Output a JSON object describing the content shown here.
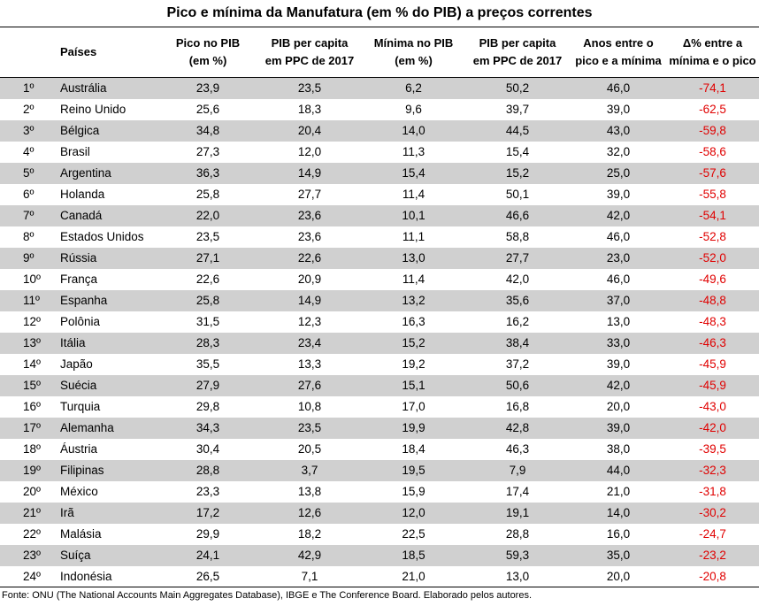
{
  "title": "Pico e mínima da Manufatura (em % do PIB) a preços correntes",
  "headers": {
    "pais": "Países",
    "pico": [
      "Pico no PIB",
      "(em %)"
    ],
    "pib_pico": [
      "PIB per capita",
      "em PPC de 2017"
    ],
    "minima": [
      "Mínima no PIB",
      "(em %)"
    ],
    "pib_min": [
      "PIB per capita",
      "em PPC de 2017"
    ],
    "anos": [
      "Anos entre o",
      "pico e a mínima"
    ],
    "delta": [
      "Δ% entre a",
      "mínima e o pico"
    ]
  },
  "rows": [
    [
      "1º",
      "Austrália",
      "23,9",
      "23,5",
      "6,2",
      "50,2",
      "46,0",
      "-74,1"
    ],
    [
      "2º",
      "Reino Unido",
      "25,6",
      "18,3",
      "9,6",
      "39,7",
      "39,0",
      "-62,5"
    ],
    [
      "3º",
      "Bélgica",
      "34,8",
      "20,4",
      "14,0",
      "44,5",
      "43,0",
      "-59,8"
    ],
    [
      "4º",
      "Brasil",
      "27,3",
      "12,0",
      "11,3",
      "15,4",
      "32,0",
      "-58,6"
    ],
    [
      "5º",
      "Argentina",
      "36,3",
      "14,9",
      "15,4",
      "15,2",
      "25,0",
      "-57,6"
    ],
    [
      "6º",
      "Holanda",
      "25,8",
      "27,7",
      "11,4",
      "50,1",
      "39,0",
      "-55,8"
    ],
    [
      "7º",
      "Canadá",
      "22,0",
      "23,6",
      "10,1",
      "46,6",
      "42,0",
      "-54,1"
    ],
    [
      "8º",
      "Estados Unidos",
      "23,5",
      "23,6",
      "11,1",
      "58,8",
      "46,0",
      "-52,8"
    ],
    [
      "9º",
      "Rússia",
      "27,1",
      "22,6",
      "13,0",
      "27,7",
      "23,0",
      "-52,0"
    ],
    [
      "10º",
      "França",
      "22,6",
      "20,9",
      "11,4",
      "42,0",
      "46,0",
      "-49,6"
    ],
    [
      "11º",
      "Espanha",
      "25,8",
      "14,9",
      "13,2",
      "35,6",
      "37,0",
      "-48,8"
    ],
    [
      "12º",
      "Polônia",
      "31,5",
      "12,3",
      "16,3",
      "16,2",
      "13,0",
      "-48,3"
    ],
    [
      "13º",
      "Itália",
      "28,3",
      "23,4",
      "15,2",
      "38,4",
      "33,0",
      "-46,3"
    ],
    [
      "14º",
      "Japão",
      "35,5",
      "13,3",
      "19,2",
      "37,2",
      "39,0",
      "-45,9"
    ],
    [
      "15º",
      "Suécia",
      "27,9",
      "27,6",
      "15,1",
      "50,6",
      "42,0",
      "-45,9"
    ],
    [
      "16º",
      "Turquia",
      "29,8",
      "10,8",
      "17,0",
      "16,8",
      "20,0",
      "-43,0"
    ],
    [
      "17º",
      "Alemanha",
      "34,3",
      "23,5",
      "19,9",
      "42,8",
      "39,0",
      "-42,0"
    ],
    [
      "18º",
      "Áustria",
      "30,4",
      "20,5",
      "18,4",
      "46,3",
      "38,0",
      "-39,5"
    ],
    [
      "19º",
      "Filipinas",
      "28,8",
      "3,7",
      "19,5",
      "7,9",
      "44,0",
      "-32,3"
    ],
    [
      "20º",
      "México",
      "23,3",
      "13,8",
      "15,9",
      "17,4",
      "21,0",
      "-31,8"
    ],
    [
      "21º",
      "Irã",
      "17,2",
      "12,6",
      "12,0",
      "19,1",
      "14,0",
      "-30,2"
    ],
    [
      "22º",
      "Malásia",
      "29,9",
      "18,2",
      "22,5",
      "28,8",
      "16,0",
      "-24,7"
    ],
    [
      "23º",
      "Suíça",
      "24,1",
      "42,9",
      "18,5",
      "59,3",
      "35,0",
      "-23,2"
    ],
    [
      "24º",
      "Indonésia",
      "26,5",
      "7,1",
      "21,0",
      "13,0",
      "20,0",
      "-20,8"
    ]
  ],
  "source": "Fonte: ONU (The National Accounts Main Aggregates Database), IBGE e The Conference Board. Elaborado pelos autores.",
  "colors": {
    "negative": "#e00000",
    "stripe": "#d0d0d0"
  }
}
